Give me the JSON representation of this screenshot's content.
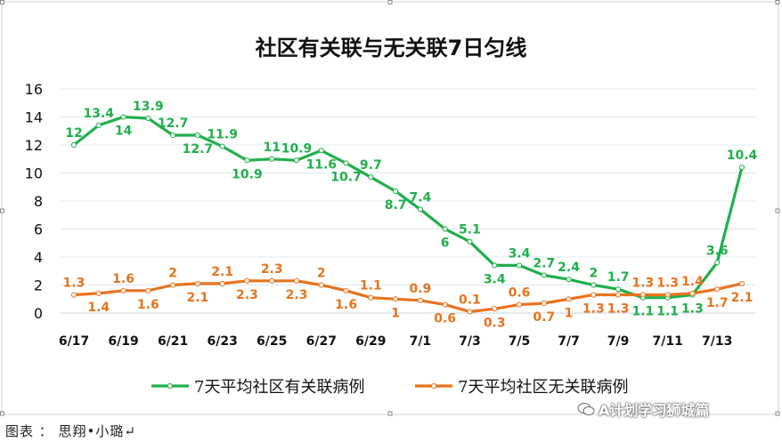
{
  "chart_data": {
    "type": "line",
    "title": "社区有关联与无关联7日匀线",
    "x": [
      "6/17",
      "6/18",
      "6/19",
      "6/20",
      "6/21",
      "6/22",
      "6/23",
      "6/24",
      "6/25",
      "6/26",
      "6/27",
      "6/28",
      "6/29",
      "6/30",
      "7/1",
      "7/2",
      "7/3",
      "7/4",
      "7/5",
      "7/6",
      "7/7",
      "7/8",
      "7/9",
      "7/10",
      "7/11",
      "7/12",
      "7/13",
      "7/14"
    ],
    "x_tick_labels": [
      "6/17",
      "6/19",
      "6/21",
      "6/23",
      "6/25",
      "6/27",
      "6/29",
      "7/1",
      "7/3",
      "7/5",
      "7/7",
      "7/9",
      "7/11",
      "7/13"
    ],
    "y_ticks": [
      "16",
      "14",
      "12",
      "10",
      "8",
      "6",
      "4",
      "2",
      "0"
    ],
    "ylim": [
      0,
      16
    ],
    "series": [
      {
        "name": "7天平均社区有关联病例",
        "color": "#1fb04a",
        "values": [
          12,
          13.4,
          14,
          13.9,
          12.7,
          12.7,
          11.9,
          10.9,
          11,
          10.9,
          11.6,
          10.7,
          9.7,
          8.7,
          7.4,
          6,
          5.1,
          3.4,
          3.4,
          2.7,
          2.4,
          2,
          1.7,
          1.1,
          1.1,
          1.3,
          3.6,
          10.4
        ],
        "labels": [
          "12",
          "13.4",
          "14",
          "13.9",
          "12.7",
          "12.7",
          "11.9",
          "10.9",
          "11",
          "10.9",
          "11.6",
          "10.7",
          "9.7",
          "8.7",
          "7.4",
          "6",
          "5.1",
          "3.4",
          "3.4",
          "2.7",
          "2.4",
          "2",
          "1.7",
          "1.1",
          "1.1",
          "1.3",
          "3.6",
          "10.4"
        ],
        "label_pos": [
          "a",
          "a",
          "b",
          "a",
          "a",
          "b",
          "a",
          "b",
          "a",
          "a",
          "b",
          "b",
          "a",
          "b",
          "a",
          "b",
          "a",
          "b",
          "a",
          "a",
          "a",
          "a",
          "a",
          "b",
          "b",
          "b",
          "a",
          "a"
        ]
      },
      {
        "name": "7天平均社区无关联病例",
        "color": "#e8731e",
        "values": [
          1.3,
          1.4,
          1.6,
          1.6,
          2,
          2.1,
          2.1,
          2.3,
          2.3,
          2.3,
          2,
          1.6,
          1.1,
          1,
          0.9,
          0.6,
          0.1,
          0.3,
          0.6,
          0.7,
          1,
          1.3,
          1.3,
          1.3,
          1.3,
          1.4,
          1.7,
          2.1
        ],
        "labels": [
          "1.3",
          "1.4",
          "1.6",
          "1.6",
          "2",
          "2.1",
          "2.1",
          "2.3",
          "2.3",
          "2.3",
          "2",
          "1.6",
          "1.1",
          "1",
          "0.9",
          "0.6",
          "0.1",
          "0.3",
          "0.6",
          "0.7",
          "1",
          "1.3",
          "1.3",
          "1.3",
          "1.3",
          "1.4",
          "1.7",
          "2.1"
        ],
        "label_pos": [
          "a",
          "b",
          "a",
          "b",
          "a",
          "b",
          "a",
          "b",
          "a",
          "b",
          "a",
          "b",
          "a",
          "b",
          "a",
          "b",
          "a",
          "b",
          "a",
          "b",
          "b",
          "b",
          "b",
          "a",
          "a",
          "a",
          "b",
          "b"
        ]
      }
    ],
    "legend_position": "bottom"
  },
  "caption": "图表 ： 思翔•小璐↵",
  "watermark": "A计划学习狮城篇",
  "watermark_icon": "wechat-icon"
}
